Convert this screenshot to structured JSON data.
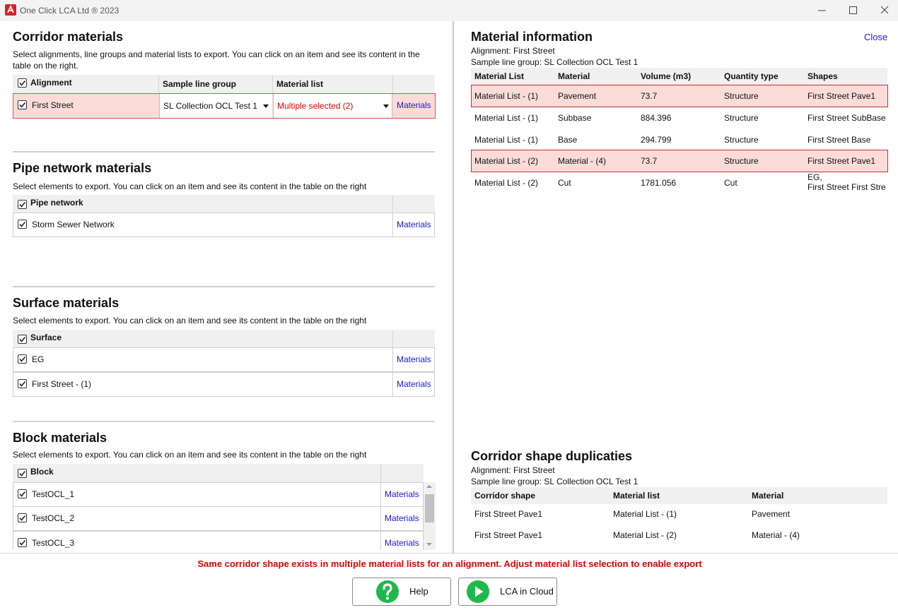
{
  "window": {
    "title": "One Click LCA Ltd ® 2023"
  },
  "corridor": {
    "title": "Corridor materials",
    "description": [
      "Select alignments, line groups and material lists to export. You can click on an item and see its content in the",
      "table on the right."
    ],
    "headers": [
      "Alignment",
      "Sample line group",
      "Material list"
    ],
    "rows": [
      {
        "name": "First Street",
        "line_group": "SL Collection OCL Test 1",
        "material_list": "Multiple selected (2)",
        "link": "Materials"
      }
    ]
  },
  "pipe": {
    "title": "Pipe network materials",
    "description": "Select elements to export. You can click on an item and see its content in the table on the right",
    "header": "Pipe network",
    "rows": [
      {
        "name": "Storm Sewer Network",
        "link": "Materials"
      }
    ]
  },
  "surface": {
    "title": "Surface materials",
    "description": "Select elements to export. You can click on an item and see its content in the table on the right",
    "header": "Surface",
    "rows": [
      {
        "name": "EG",
        "link": "Materials"
      },
      {
        "name": "First Street - (1)",
        "link": "Materials"
      }
    ]
  },
  "block": {
    "title": "Block materials",
    "description": "Select elements to export. You can click on an item and see its content in the table on the right",
    "header": "Block",
    "rows": [
      {
        "name": "TestOCL_1",
        "link": "Materials"
      },
      {
        "name": "TestOCL_2",
        "link": "Materials"
      },
      {
        "name": "TestOCL_3",
        "link": "Materials"
      }
    ]
  },
  "material_info": {
    "title": "Material information",
    "close": "Close",
    "alignment": "Alignment: First Street",
    "line_group": "Sample line group: SL Collection OCL Test 1",
    "headers": [
      "Material List",
      "Material",
      "Volume (m3)",
      "Quantity type",
      "Shapes"
    ],
    "rows": [
      [
        "Material List - (1)",
        "Pavement",
        "73.7",
        "Structure",
        "First Street Pave1"
      ],
      [
        "Material List - (1)",
        "Subbase",
        "884.396",
        "Structure",
        "First Street SubBase"
      ],
      [
        "Material List - (1)",
        "Base",
        "294.799",
        "Structure",
        "First Street Base"
      ],
      [
        "Material List - (2)",
        "Material - (4)",
        "73.7",
        "Structure",
        "First Street Pave1"
      ],
      [
        "Material List - (2)",
        "Cut",
        "1781.056",
        "Cut",
        "EG,\nFirst Street First Stre"
      ]
    ]
  },
  "duplicates": {
    "title": "Corridor shape duplicaties",
    "alignment": "Alignment: First Street",
    "line_group": "Sample line group: SL Collection OCL Test 1",
    "headers": [
      "Corridor shape",
      "Material list",
      "Material"
    ],
    "rows": [
      [
        "First Street Pave1",
        "Material List - (1)",
        "Pavement"
      ],
      [
        "First Street Pave1",
        "Material List - (2)",
        "Material - (4)"
      ]
    ]
  },
  "footer": {
    "error": "Same corridor shape exists in multiple material lists for an alignment. Adjust material list selection to enable export",
    "buttons": [
      "Help",
      "LCA in Cloud"
    ]
  }
}
